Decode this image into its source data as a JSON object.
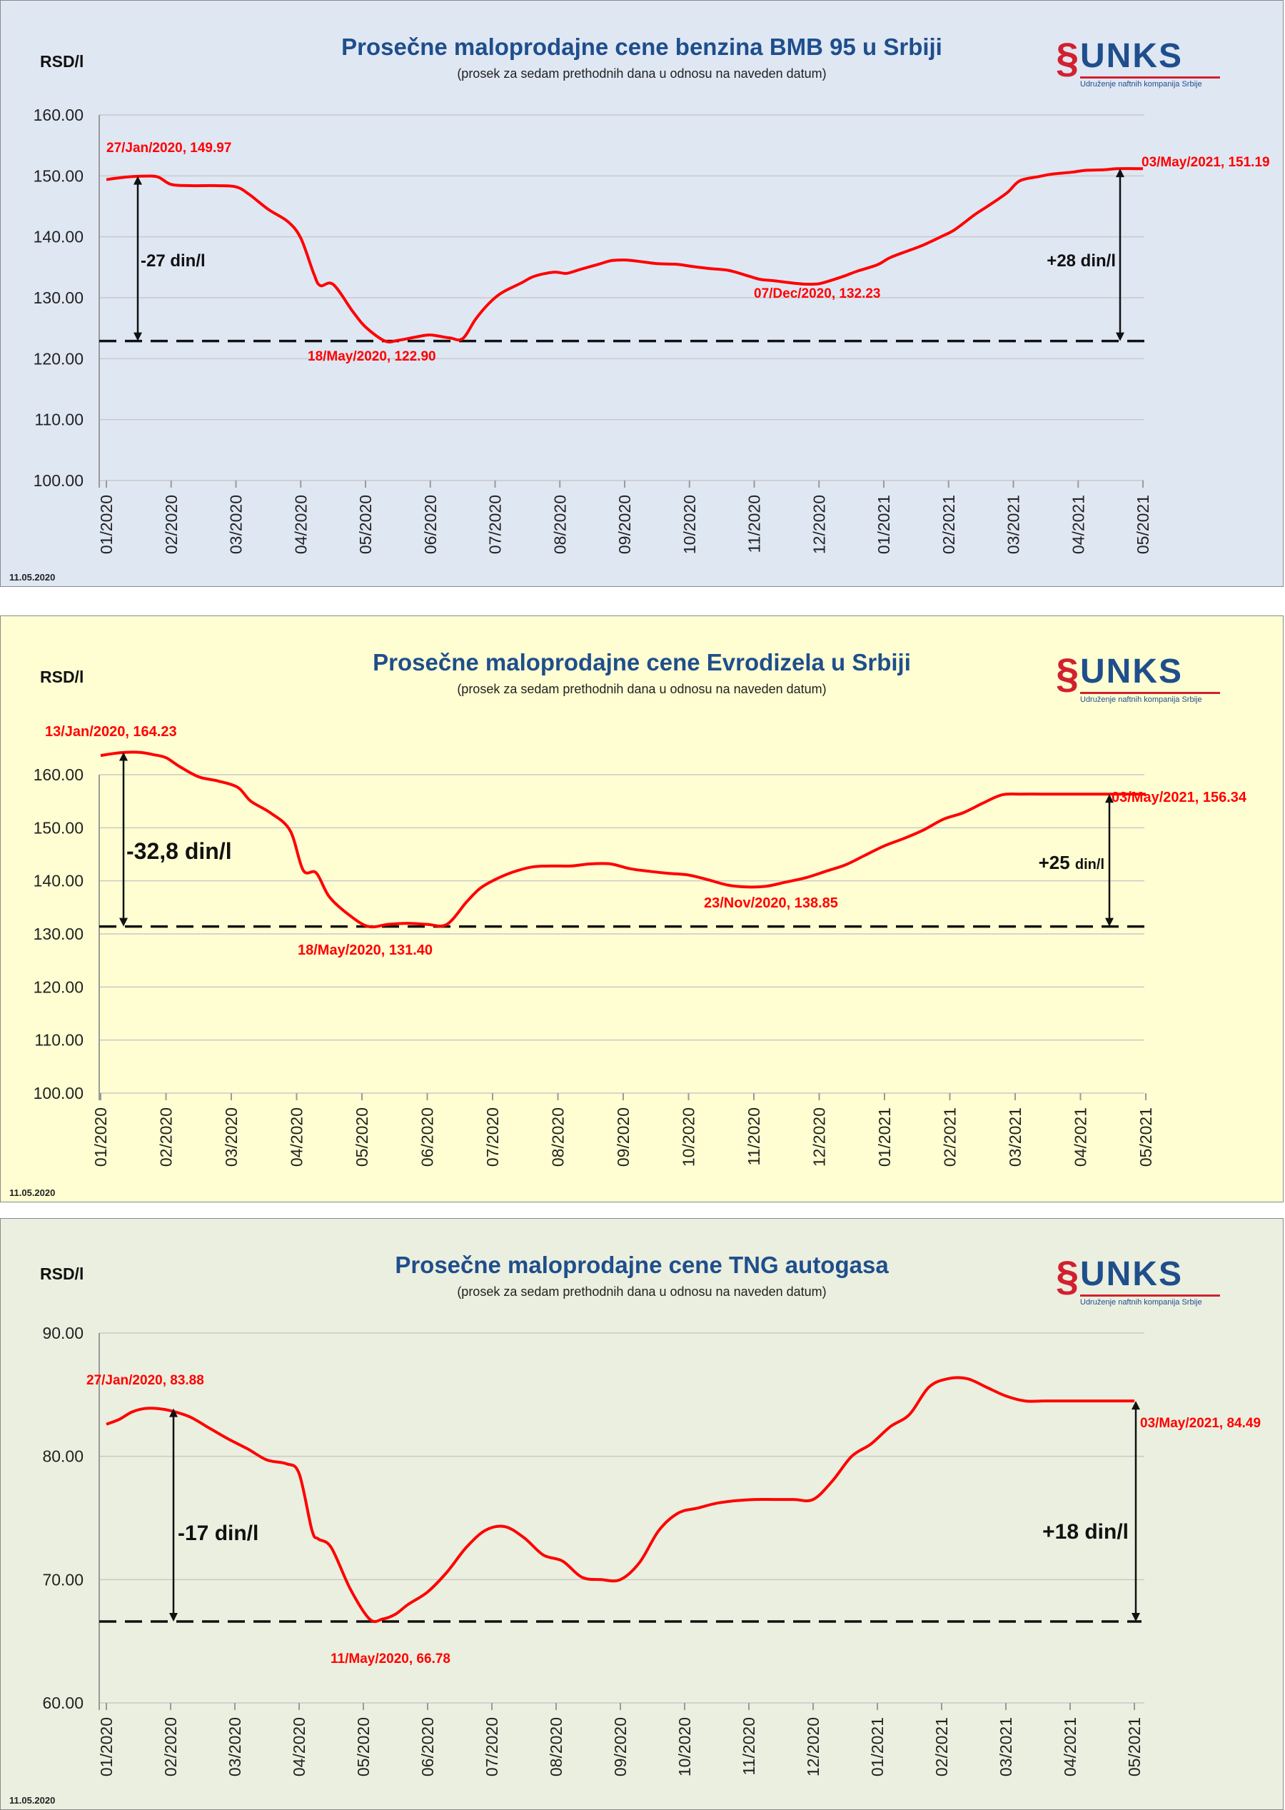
{
  "charts": [
    {
      "background": "#dfe7f3",
      "title": "Prosečne maloprodajne cene benzina BMB 95 u Srbiji",
      "subtitle": "(prosek za sedam prethodnih dana u odnosu na naveden datum)",
      "unit": "RSD/l",
      "date": "11.05.2020",
      "logo": {
        "name": "UNKS",
        "tagline": "Udruženje naftnih kompanija Srbije"
      },
      "chart_data": {
        "type": "line",
        "ylim": [
          100,
          160
        ],
        "yticks": [
          "100.00",
          "110.00",
          "120.00",
          "130.00",
          "140.00",
          "150.00",
          "160.00"
        ],
        "categories": [
          "01/2020",
          "02/2020",
          "03/2020",
          "04/2020",
          "05/2020",
          "06/2020",
          "07/2020",
          "08/2020",
          "09/2020",
          "10/2020",
          "11/2020",
          "12/2020",
          "01/2021",
          "02/2021",
          "03/2021",
          "04/2021",
          "05/2021"
        ],
        "grid": true,
        "line_color": "#ff0000",
        "series": [
          {
            "name": "BMB 95",
            "x": [
              0,
              0.3,
              0.6,
              0.8,
              1.0,
              1.3,
              1.7,
              2.0,
              2.2,
              2.5,
              2.8,
              3.0,
              3.2,
              3.3,
              3.5,
              3.8,
              4.0,
              4.3,
              4.5,
              4.8,
              5.0,
              5.3,
              5.5,
              5.7,
              5.9,
              6.1,
              6.4,
              6.6,
              6.9,
              7.1,
              7.3,
              7.6,
              7.8,
              8.0,
              8.2,
              8.5,
              8.8,
              9.0,
              9.3,
              9.6,
              9.9,
              10.1,
              10.3,
              10.6,
              10.8,
              11.0,
              11.2,
              11.4,
              11.6,
              11.9,
              12.1,
              12.4,
              12.6,
              12.9,
              13.1,
              13.4,
              13.6,
              13.9,
              14.1,
              14.4,
              14.6,
              14.9,
              15.1,
              15.4,
              15.6,
              15.9,
              16.0
            ],
            "values": [
              149.4,
              149.8,
              149.97,
              149.8,
              148.6,
              148.4,
              148.4,
              148.2,
              147.0,
              144.5,
              142.5,
              139.8,
              134.0,
              132.0,
              132.2,
              127.8,
              125.2,
              122.9,
              123.0,
              123.6,
              123.9,
              123.4,
              123.3,
              126.5,
              129.0,
              130.8,
              132.4,
              133.5,
              134.2,
              134.0,
              134.6,
              135.5,
              136.1,
              136.2,
              136.0,
              135.6,
              135.5,
              135.2,
              134.8,
              134.5,
              133.6,
              133.0,
              132.8,
              132.4,
              132.23,
              132.3,
              132.9,
              133.6,
              134.4,
              135.4,
              136.6,
              137.8,
              138.6,
              140.1,
              141.2,
              143.6,
              145.0,
              147.2,
              149.2,
              149.9,
              150.3,
              150.6,
              150.9,
              151.0,
              151.19,
              151.19,
              151.19
            ]
          }
        ],
        "baseline": 122.9,
        "annotations": {
          "peak": "27/Jan/2020, 149.97",
          "low": "18/May/2020, 122.90",
          "mid": "07/Dec/2020, 132.23",
          "end": "03/May/2021, 151.19",
          "drop": "-27 din/l",
          "rise": "+28 din/l"
        }
      }
    },
    {
      "background": "#fefed2",
      "title": "Prosečne maloprodajne cene Evrodizela u Srbiji",
      "subtitle": "(prosek za sedam prethodnih dana u odnosu na naveden datum)",
      "unit": "RSD/l",
      "date": "11.05.2020",
      "logo": {
        "name": "UNKS",
        "tagline": "Udruženje naftnih kompanija Srbije"
      },
      "chart_data": {
        "type": "line",
        "ylim": [
          100,
          160
        ],
        "yticks": [
          "100.00",
          "110.00",
          "120.00",
          "130.00",
          "140.00",
          "150.00",
          "160.00"
        ],
        "categories": [
          "01/2020",
          "02/2020",
          "03/2020",
          "04/2020",
          "05/2020",
          "06/2020",
          "07/2020",
          "08/2020",
          "09/2020",
          "10/2020",
          "11/2020",
          "12/2020",
          "01/2021",
          "02/2021",
          "03/2021",
          "04/2021",
          "05/2021"
        ],
        "grid": true,
        "line_color": "#ff0000",
        "series": [
          {
            "name": "Evrodizel",
            "x": [
              0,
              0.2,
              0.4,
              0.6,
              0.8,
              1.0,
              1.2,
              1.5,
              1.8,
              2.1,
              2.3,
              2.6,
              2.9,
              3.1,
              3.3,
              3.5,
              3.8,
              4.1,
              4.4,
              4.7,
              5.0,
              5.3,
              5.6,
              5.8,
              6.0,
              6.3,
              6.6,
              6.9,
              7.2,
              7.5,
              7.8,
              8.1,
              8.4,
              8.7,
              9.0,
              9.3,
              9.6,
              9.9,
              10.2,
              10.5,
              10.8,
              11.1,
              11.4,
              11.7,
              12.0,
              12.3,
              12.6,
              12.9,
              13.2,
              13.5,
              13.8,
              14.1,
              14.4,
              14.7,
              15.0,
              15.3,
              15.6,
              15.9,
              16.0
            ],
            "values": [
              163.6,
              164.0,
              164.23,
              164.2,
              163.8,
              163.2,
              161.6,
              159.6,
              158.8,
              157.6,
              155.0,
              152.8,
              149.5,
              142.0,
              141.5,
              137.0,
              133.6,
              131.4,
              131.8,
              132.0,
              131.8,
              131.8,
              136.0,
              138.5,
              140.0,
              141.6,
              142.6,
              142.8,
              142.8,
              143.2,
              143.2,
              142.3,
              141.8,
              141.4,
              141.1,
              140.2,
              139.2,
              138.85,
              139.0,
              139.8,
              140.6,
              141.8,
              143.0,
              144.8,
              146.6,
              148.0,
              149.6,
              151.6,
              152.8,
              154.6,
              156.2,
              156.34,
              156.34,
              156.34,
              156.34,
              156.34,
              156.34,
              156.34,
              156.34
            ]
          }
        ],
        "baseline": 131.4,
        "annotations": {
          "peak": "13/Jan/2020, 164.23",
          "low": "18/May/2020, 131.40",
          "mid": "23/Nov/2020, 138.85",
          "end": "03/May/2021, 156.34",
          "drop": "-32,8 din/l",
          "rise_num": "+25",
          "rise_unit": "din/l"
        }
      }
    },
    {
      "background": "#ebefdf",
      "title": "Prosečne maloprodajne cene TNG autogasa",
      "subtitle": "(prosek za sedam prethodnih dana u odnosu na naveden datum)",
      "unit": "RSD/l",
      "date": "11.05.2020",
      "logo": {
        "name": "UNKS",
        "tagline": "Udruženje naftnih kompanija Srbije"
      },
      "chart_data": {
        "type": "line",
        "ylim": [
          60,
          90
        ],
        "yticks": [
          "60.00",
          "70.00",
          "80.00",
          "90.00"
        ],
        "categories": [
          "01/2020",
          "02/2020",
          "03/2020",
          "04/2020",
          "05/2020",
          "06/2020",
          "07/2020",
          "08/2020",
          "09/2020",
          "10/2020",
          "11/2020",
          "12/2020",
          "01/2021",
          "02/2021",
          "03/2021",
          "04/2021",
          "05/2021"
        ],
        "grid": true,
        "line_color": "#ff0000",
        "series": [
          {
            "name": "TNG",
            "x": [
              0,
              0.2,
              0.4,
              0.6,
              0.8,
              1.0,
              1.3,
              1.6,
              1.9,
              2.2,
              2.5,
              2.8,
              3.0,
              3.2,
              3.3,
              3.5,
              3.8,
              4.1,
              4.3,
              4.5,
              4.7,
              5.0,
              5.3,
              5.6,
              5.9,
              6.2,
              6.5,
              6.8,
              7.1,
              7.4,
              7.7,
              8.0,
              8.3,
              8.6,
              8.9,
              9.2,
              9.5,
              9.8,
              10.1,
              10.4,
              10.7,
              11.0,
              11.3,
              11.6,
              11.9,
              12.2,
              12.5,
              12.8,
              13.1,
              13.4,
              13.7,
              14.0,
              14.3,
              14.6,
              14.8,
              15.0,
              15.2,
              15.5,
              15.8,
              16.0
            ],
            "values": [
              82.6,
              83.0,
              83.6,
              83.88,
              83.88,
              83.7,
              83.2,
              82.3,
              81.4,
              80.6,
              79.7,
              79.4,
              78.6,
              74.0,
              73.3,
              72.6,
              69.2,
              66.78,
              66.8,
              67.2,
              68.0,
              69.0,
              70.6,
              72.6,
              74.0,
              74.3,
              73.4,
              72.0,
              71.5,
              70.2,
              70.0,
              70.0,
              71.4,
              74.0,
              75.4,
              75.8,
              76.2,
              76.4,
              76.5,
              76.5,
              76.5,
              76.5,
              78.0,
              80.0,
              81.0,
              82.4,
              83.4,
              85.6,
              86.3,
              86.3,
              85.6,
              84.9,
              84.49,
              84.49,
              84.49,
              84.49,
              84.49,
              84.49,
              84.49,
              84.49
            ]
          }
        ],
        "baseline": 66.6,
        "annotations": {
          "peak": "27/Jan/2020, 83.88",
          "low": "11/May/2020, 66.78",
          "end": "03/May/2021, 84.49",
          "drop": "-17 din/l",
          "rise": "+18 din/l"
        }
      }
    }
  ]
}
